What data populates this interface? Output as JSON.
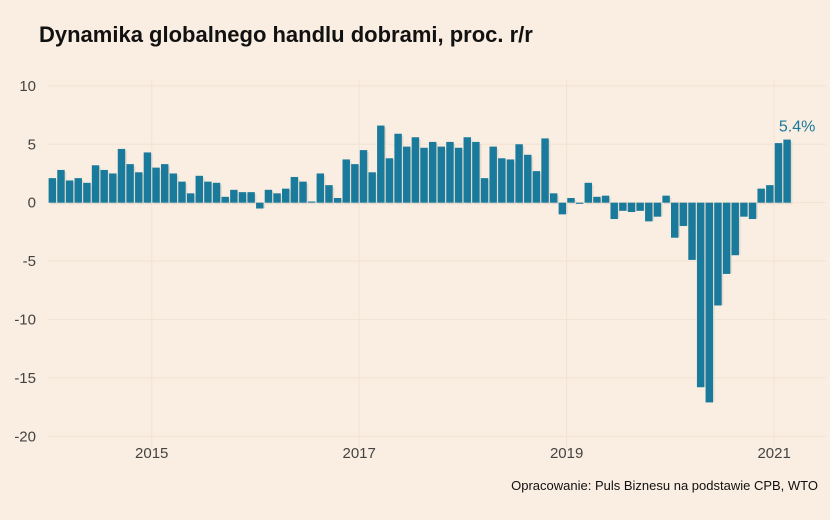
{
  "chart_data": {
    "type": "bar",
    "title": "Dynamika globalnego handlu dobrami, proc. r/r",
    "source": "Opracowanie: Puls Biznesu na podstawie CPB, WTO",
    "xlabel": "",
    "ylabel": "",
    "ylim": [
      -21,
      10.5
    ],
    "xlim": [
      2014.0,
      2021.5
    ],
    "yticks": [
      10,
      5,
      0,
      -5,
      -10,
      -15,
      -20
    ],
    "ytick_labels": [
      "10",
      "5",
      "0",
      "-5",
      "-10",
      "-15",
      "-20"
    ],
    "xticks": [
      2015,
      2017,
      2019,
      2021
    ],
    "xtick_labels": [
      "2015",
      "2017",
      "2019",
      "2021"
    ],
    "grid": true,
    "bar_color": "#1a7a9b",
    "shadow_color": "#d9d3c8",
    "grid_color": "#f2e3d4",
    "start": "2014-01",
    "end": "2021-02",
    "frequency": "monthly",
    "values": [
      2.1,
      2.8,
      1.9,
      2.1,
      1.7,
      3.2,
      2.8,
      2.5,
      4.6,
      3.3,
      2.6,
      4.3,
      3.0,
      3.3,
      2.5,
      1.8,
      0.8,
      2.3,
      1.8,
      1.7,
      0.5,
      1.1,
      0.9,
      0.9,
      -0.5,
      1.1,
      0.8,
      1.2,
      2.2,
      1.8,
      0.1,
      2.5,
      1.5,
      0.4,
      3.7,
      3.3,
      4.5,
      2.6,
      6.6,
      3.8,
      5.9,
      4.8,
      5.6,
      4.7,
      5.2,
      4.8,
      5.2,
      4.7,
      5.6,
      5.2,
      2.1,
      4.8,
      3.8,
      3.7,
      5.0,
      4.1,
      2.7,
      5.5,
      0.8,
      -1.0,
      0.4,
      -0.1,
      1.7,
      0.5,
      0.6,
      -1.4,
      -0.7,
      -0.8,
      -0.7,
      -1.6,
      -1.2,
      0.6,
      -3.0,
      -2.0,
      -4.9,
      -15.8,
      -17.1,
      -8.8,
      -6.1,
      -4.5,
      -1.2,
      -1.4,
      1.2,
      1.5,
      5.1,
      5.4
    ],
    "annotation": {
      "text": "5.4%",
      "color": "#1a7a9b"
    }
  }
}
